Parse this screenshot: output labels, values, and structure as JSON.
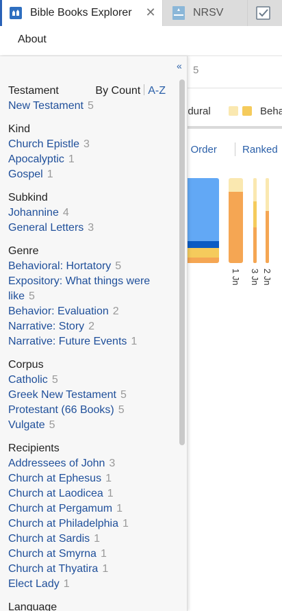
{
  "tabs": [
    {
      "label": "Bible Books Explorer",
      "close": "✕",
      "icon": "bible-explorer-icon",
      "active": true
    },
    {
      "label": "NRSV",
      "icon": "nrsv-book-icon",
      "active": false
    },
    {
      "label": "",
      "icon": "checklist-icon",
      "active": false
    }
  ],
  "menubar": {
    "about": "About"
  },
  "content": {
    "count": "5",
    "legend_text": "edural",
    "legend_text2": "Beha",
    "sort_order": "n Order",
    "sort_ranked": "Ranked",
    "bar_labels": [
      "1 Jn",
      "3 Jn",
      "2 Jn"
    ]
  },
  "panel": {
    "collapse": "«",
    "sort": {
      "by_count": "By Count",
      "az": "A-Z"
    },
    "groups": [
      {
        "heading": "Testament",
        "items": [
          {
            "label": "New Testament",
            "count": "5"
          }
        ]
      },
      {
        "heading": "Kind",
        "items": [
          {
            "label": "Church Epistle",
            "count": "3"
          },
          {
            "label": "Apocalyptic",
            "count": "1"
          },
          {
            "label": "Gospel",
            "count": "1"
          }
        ]
      },
      {
        "heading": "Subkind",
        "items": [
          {
            "label": "Johannine",
            "count": "4"
          },
          {
            "label": "General Letters",
            "count": "3"
          }
        ]
      },
      {
        "heading": "Genre",
        "items": [
          {
            "label": "Behavioral: Hortatory",
            "count": "5"
          },
          {
            "label": "Expository: What things were like",
            "count": "5"
          },
          {
            "label": "Behavior: Evaluation",
            "count": "2"
          },
          {
            "label": "Narrative: Story",
            "count": "2"
          },
          {
            "label": "Narrative: Future Events",
            "count": "1"
          }
        ]
      },
      {
        "heading": "Corpus",
        "items": [
          {
            "label": "Catholic",
            "count": "5"
          },
          {
            "label": "Greek New Testament",
            "count": "5"
          },
          {
            "label": "Protestant (66 Books)",
            "count": "5"
          },
          {
            "label": "Vulgate",
            "count": "5"
          }
        ]
      },
      {
        "heading": "Recipients",
        "items": [
          {
            "label": "Addressees of John",
            "count": "3"
          },
          {
            "label": "Church at Ephesus",
            "count": "1"
          },
          {
            "label": "Church at Laodicea",
            "count": "1"
          },
          {
            "label": "Church at Pergamum",
            "count": "1"
          },
          {
            "label": "Church at Philadelphia",
            "count": "1"
          },
          {
            "label": "Church at Sardis",
            "count": "1"
          },
          {
            "label": "Church at Smyrna",
            "count": "1"
          },
          {
            "label": "Church at Thyatira",
            "count": "1"
          },
          {
            "label": "Elect Lady",
            "count": "1"
          }
        ]
      },
      {
        "heading": "Language",
        "items": []
      }
    ]
  },
  "colors": {
    "link": "#1f4f9a",
    "accent": "#2a62b7",
    "bar_blue": "#62a8f5",
    "bar_navy": "#0a5bc4",
    "bar_yellow": "#f5cb5c",
    "bar_light_yellow": "#fae8b0",
    "bar_orange": "#f5a653"
  }
}
